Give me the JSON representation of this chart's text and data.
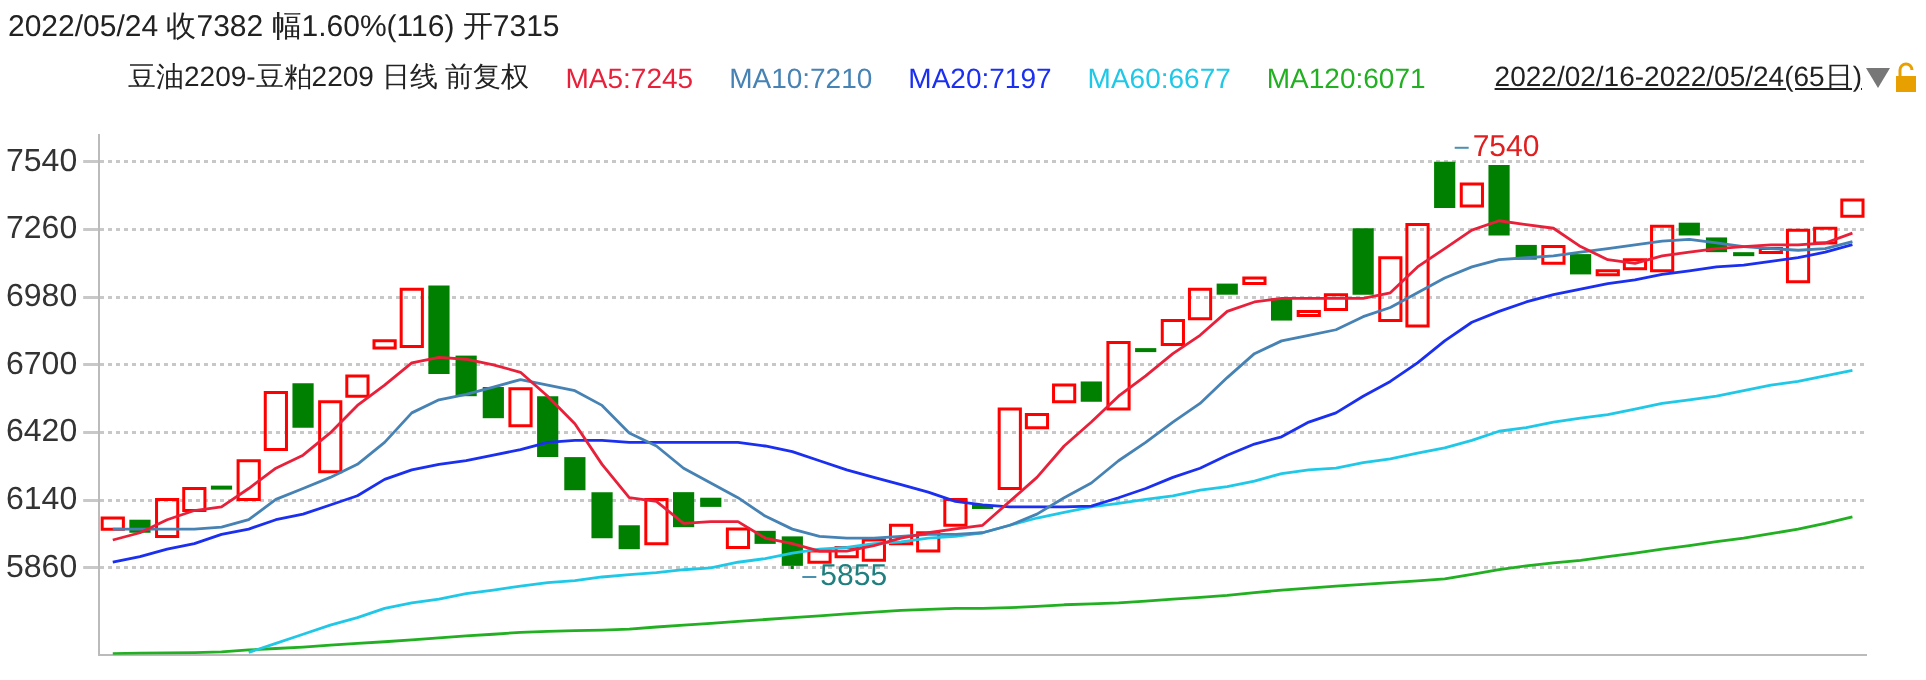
{
  "chart_data": {
    "type": "candlestick",
    "title": "2022/05/24 收7382 幅1.60%(116) 开7315",
    "subtitle": "豆油2209-豆粕2209 日线 前复权",
    "categories": [
      null,
      null,
      null,
      null,
      null,
      null,
      null,
      null,
      null,
      null,
      null,
      null,
      null,
      null,
      null,
      null,
      null,
      null,
      null,
      null,
      null,
      null,
      null,
      null,
      null,
      null,
      null,
      null,
      null,
      null,
      null,
      null,
      null,
      null,
      null,
      null,
      null,
      null,
      null,
      null,
      null,
      null,
      null,
      null,
      null,
      null,
      null,
      null,
      null,
      null,
      null,
      null,
      null,
      null,
      null,
      null,
      null,
      null,
      null,
      null,
      null,
      null,
      null,
      null,
      null
    ],
    "ohlc": [
      [
        6020,
        6066,
        6020,
        6066
      ],
      [
        6059,
        6059,
        6005,
        6005
      ],
      [
        5990,
        6143,
        5990,
        6143
      ],
      [
        6097,
        6188,
        6097,
        6188
      ],
      [
        6200,
        6200,
        6190,
        6190
      ],
      [
        6143,
        6303,
        6143,
        6303
      ],
      [
        6349,
        6585,
        6349,
        6585
      ],
      [
        6624,
        6624,
        6440,
        6440
      ],
      [
        6257,
        6547,
        6257,
        6547
      ],
      [
        6570,
        6654,
        6570,
        6654
      ],
      [
        6769,
        6799,
        6769,
        6799
      ],
      [
        6776,
        7013,
        6776,
        7013
      ],
      [
        7028,
        7028,
        6662,
        6662
      ],
      [
        6738,
        6738,
        6570,
        6570
      ],
      [
        6608,
        6608,
        6479,
        6479
      ],
      [
        6448,
        6601,
        6448,
        6601
      ],
      [
        6570,
        6570,
        6318,
        6318
      ],
      [
        6318,
        6318,
        6181,
        6181
      ],
      [
        6173,
        6173,
        5982,
        5982
      ],
      [
        6036,
        6036,
        5937,
        5937
      ],
      [
        5959,
        6143,
        5959,
        6143
      ],
      [
        6173,
        6173,
        6028,
        6028
      ],
      [
        6150,
        6150,
        6112,
        6112
      ],
      [
        5944,
        6021,
        5944,
        6021
      ],
      [
        6013,
        6013,
        5959,
        5959
      ],
      [
        5990,
        5990,
        5855,
        5868
      ],
      [
        5883,
        5929,
        5883,
        5929
      ],
      [
        5906,
        5944,
        5906,
        5944
      ],
      [
        5891,
        5975,
        5891,
        5975
      ],
      [
        5959,
        6036,
        5959,
        6036
      ],
      [
        5929,
        6005,
        5929,
        6005
      ],
      [
        6036,
        6143,
        6036,
        6143
      ],
      [
        6120,
        6120,
        6105,
        6105
      ],
      [
        6188,
        6517,
        6188,
        6517
      ],
      [
        6440,
        6494,
        6440,
        6494
      ],
      [
        6547,
        6616,
        6547,
        6616
      ],
      [
        6631,
        6631,
        6547,
        6547
      ],
      [
        6517,
        6792,
        6517,
        6792
      ],
      [
        6769,
        6769,
        6761,
        6761
      ],
      [
        6784,
        6883,
        6784,
        6883
      ],
      [
        6891,
        7013,
        6891,
        7013
      ],
      [
        7036,
        7036,
        6990,
        6990
      ],
      [
        7036,
        7059,
        7036,
        7059
      ],
      [
        6975,
        6975,
        6883,
        6883
      ],
      [
        6906,
        6921,
        6906,
        6921
      ],
      [
        6929,
        6990,
        6929,
        6990
      ],
      [
        7265,
        7265,
        6990,
        6990
      ],
      [
        6883,
        7143,
        6883,
        7143
      ],
      [
        6860,
        7280,
        6860,
        7280
      ],
      [
        7540,
        7540,
        7349,
        7349
      ],
      [
        7357,
        7448,
        7357,
        7448
      ],
      [
        7527,
        7527,
        7235,
        7235
      ],
      [
        7196,
        7196,
        7135,
        7135
      ],
      [
        7120,
        7189,
        7120,
        7189
      ],
      [
        7158,
        7158,
        7074,
        7074
      ],
      [
        7074,
        7089,
        7074,
        7089
      ],
      [
        7097,
        7135,
        7097,
        7135
      ],
      [
        7089,
        7273,
        7089,
        7273
      ],
      [
        7288,
        7288,
        7235,
        7235
      ],
      [
        7227,
        7227,
        7166,
        7166
      ],
      [
        7166,
        7166,
        7151,
        7151
      ],
      [
        7166,
        7181,
        7166,
        7181
      ],
      [
        7044,
        7257,
        7044,
        7257
      ],
      [
        7204,
        7265,
        7204,
        7265
      ],
      [
        7315,
        7382,
        7315,
        7382
      ]
    ],
    "colors": [
      "#ff0000",
      "#008000",
      "#ff0000",
      "#ff0000",
      "#008000",
      "#ff0000",
      "#ff0000",
      "#008000",
      "#ff0000",
      "#ff0000",
      "#ff0000",
      "#ff0000",
      "#008000",
      "#008000",
      "#008000",
      "#ff0000",
      "#008000",
      "#008000",
      "#008000",
      "#008000",
      "#ff0000",
      "#008000",
      "#008000",
      "#ff0000",
      "#008000",
      "#008000",
      "#ff0000",
      "#ff0000",
      "#ff0000",
      "#ff0000",
      "#ff0000",
      "#ff0000",
      "#008000",
      "#ff0000",
      "#ff0000",
      "#ff0000",
      "#008000",
      "#ff0000",
      "#008000",
      "#ff0000",
      "#ff0000",
      "#008000",
      "#ff0000",
      "#008000",
      "#ff0000",
      "#ff0000",
      "#008000",
      "#ff0000",
      "#ff0000",
      "#008000",
      "#ff0000",
      "#008000",
      "#008000",
      "#ff0000",
      "#008000",
      "#ff0000",
      "#ff0000",
      "#ff0000",
      "#008000",
      "#008000",
      "#008000",
      "#ff0000",
      "#ff0000",
      "#ff0000",
      "#ff0000"
    ],
    "series": [
      {
        "type": "line",
        "name": "MA5:7245",
        "color": "#e8203a",
        "values": [
          5975,
          6005,
          6059,
          6097,
          6112,
          6188,
          6272,
          6326,
          6418,
          6532,
          6616,
          6708,
          6731,
          6723,
          6700,
          6669,
          6570,
          6456,
          6288,
          6150,
          6135,
          6044,
          6051,
          6051,
          5983,
          5960,
          5929,
          5929,
          5952,
          5983,
          6005,
          6021,
          6036,
          6135,
          6234,
          6364,
          6463,
          6570,
          6654,
          6746,
          6822,
          6921,
          6960,
          6975,
          6975,
          6975,
          6975,
          6998,
          7105,
          7181,
          7257,
          7296,
          7280,
          7265,
          7189,
          7135,
          7120,
          7151,
          7166,
          7181,
          7189,
          7196,
          7196,
          7204,
          7245
        ]
      },
      {
        "type": "line",
        "name": "MA10:7210",
        "color": "#4682b4",
        "values": [
          6020,
          6020,
          6020,
          6020,
          6028,
          6059,
          6143,
          6188,
          6234,
          6288,
          6379,
          6501,
          6555,
          6578,
          6608,
          6639,
          6616,
          6593,
          6532,
          6418,
          6364,
          6272,
          6211,
          6150,
          6074,
          6020,
          5990,
          5983,
          5983,
          5990,
          5998,
          5998,
          6005,
          6036,
          6082,
          6150,
          6211,
          6303,
          6379,
          6463,
          6540,
          6647,
          6746,
          6799,
          6822,
          6845,
          6899,
          6937,
          6998,
          7059,
          7105,
          7135,
          7143,
          7151,
          7166,
          7181,
          7196,
          7212,
          7219,
          7204,
          7189,
          7181,
          7174,
          7181,
          7210
        ]
      },
      {
        "type": "line",
        "name": "MA20:7197",
        "color": "#1a2ff0",
        "values": [
          5883,
          5906,
          5937,
          5960,
          5998,
          6020,
          6059,
          6082,
          6120,
          6158,
          6226,
          6265,
          6288,
          6303,
          6326,
          6349,
          6379,
          6387,
          6387,
          6379,
          6379,
          6379,
          6379,
          6379,
          6364,
          6341,
          6303,
          6265,
          6234,
          6204,
          6173,
          6135,
          6120,
          6112,
          6112,
          6112,
          6115,
          6150,
          6188,
          6234,
          6272,
          6326,
          6372,
          6402,
          6463,
          6501,
          6570,
          6631,
          6708,
          6799,
          6876,
          6921,
          6960,
          6990,
          7013,
          7036,
          7051,
          7074,
          7089,
          7105,
          7112,
          7128,
          7143,
          7166,
          7197
        ]
      },
      {
        "type": "line",
        "name": "MA60:6677",
        "color": "#20c8e8",
        "values": [
          null,
          null,
          null,
          null,
          null,
          5510,
          5547,
          5585,
          5623,
          5654,
          5692,
          5715,
          5730,
          5753,
          5768,
          5784,
          5799,
          5807,
          5822,
          5832,
          5840,
          5852,
          5860,
          5883,
          5898,
          5921,
          5937,
          5944,
          5960,
          5967,
          5983,
          5990,
          6005,
          6036,
          6066,
          6089,
          6112,
          6127,
          6143,
          6158,
          6181,
          6196,
          6219,
          6250,
          6265,
          6272,
          6295,
          6311,
          6334,
          6356,
          6387,
          6425,
          6440,
          6463,
          6479,
          6494,
          6517,
          6540,
          6555,
          6570,
          6593,
          6616,
          6631,
          6654,
          6677
        ]
      },
      {
        "type": "line",
        "name": "MA120:6071",
        "color": "#22b022",
        "values": [
          5505,
          5507,
          5508,
          5509,
          5512,
          5520,
          5526,
          5532,
          5540,
          5547,
          5554,
          5562,
          5570,
          5578,
          5585,
          5593,
          5597,
          5600,
          5602,
          5606,
          5615,
          5623,
          5630,
          5638,
          5646,
          5654,
          5661,
          5669,
          5677,
          5684,
          5688,
          5692,
          5692,
          5695,
          5700,
          5707,
          5711,
          5715,
          5722,
          5730,
          5738,
          5746,
          5757,
          5768,
          5776,
          5784,
          5791,
          5799,
          5806,
          5814,
          5833,
          5852,
          5868,
          5880,
          5891,
          5906,
          5921,
          5937,
          5952,
          5968,
          5983,
          6001,
          6020,
          6044,
          6071
        ]
      }
    ],
    "ylim": [
      5500,
      7650
    ],
    "yticks": [
      5860,
      6140,
      6420,
      6700,
      6980,
      7260,
      7540
    ],
    "grid": "y",
    "legend": "top",
    "tick_labels": "y",
    "marker": "none",
    "annotations": [
      "2022/02/16-2022/05/24(65日)",
      {
        "text": "7540",
        "y": 7540
      },
      "5855"
    ]
  }
}
